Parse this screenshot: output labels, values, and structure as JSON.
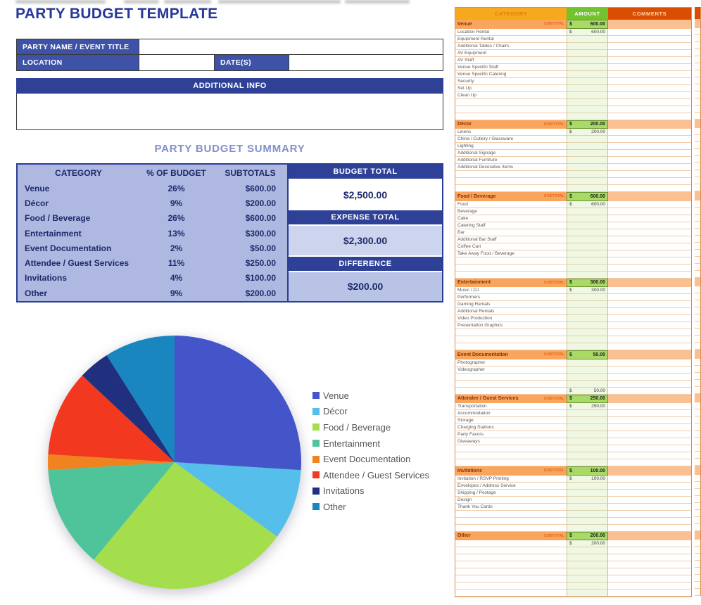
{
  "title": "PARTY BUDGET TEMPLATE",
  "form": {
    "party_name_label": "PARTY NAME / EVENT TITLE",
    "party_name_value": "",
    "location_label": "LOCATION",
    "location_value": "",
    "dates_label": "DATE(S)",
    "dates_value": "",
    "additional_info_label": "ADDITIONAL INFO",
    "additional_info_value": ""
  },
  "summary": {
    "heading": "PARTY BUDGET SUMMARY",
    "columns": [
      "CATEGORY",
      "% OF BUDGET",
      "SUBTOTALS"
    ],
    "rows": [
      {
        "category": "Venue",
        "percent": "26%",
        "subtotal": "$600.00"
      },
      {
        "category": "Décor",
        "percent": "9%",
        "subtotal": "$200.00"
      },
      {
        "category": "Food / Beverage",
        "percent": "26%",
        "subtotal": "$600.00"
      },
      {
        "category": "Entertainment",
        "percent": "13%",
        "subtotal": "$300.00"
      },
      {
        "category": "Event Documentation",
        "percent": "2%",
        "subtotal": "$50.00"
      },
      {
        "category": "Attendee / Guest Services",
        "percent": "11%",
        "subtotal": "$250.00"
      },
      {
        "category": "Invitations",
        "percent": "4%",
        "subtotal": "$100.00"
      },
      {
        "category": "Other",
        "percent": "9%",
        "subtotal": "$200.00"
      }
    ],
    "totals": [
      {
        "label": "BUDGET TOTAL",
        "value": "$2,500.00",
        "bg": "#FFFFFF"
      },
      {
        "label": "EXPENSE TOTAL",
        "value": "$2,300.00",
        "bg": "#CDD5EE"
      },
      {
        "label": "DIFFERENCE",
        "value": "$200.00",
        "bg": "#B9C3E6"
      }
    ]
  },
  "chart_data": {
    "type": "pie",
    "title": "",
    "categories": [
      "Venue",
      "Décor",
      "Food / Beverage",
      "Entertainment",
      "Event Documentation",
      "Attendee / Guest Services",
      "Invitations",
      "Other"
    ],
    "values": [
      26,
      9,
      26,
      13,
      2,
      11,
      4,
      9
    ],
    "colors": [
      "#4355C9",
      "#55BEEA",
      "#A5DE4D",
      "#4FC49B",
      "#F0831F",
      "#F2391F",
      "#20307E",
      "#1A86C0"
    ],
    "legend_position": "right",
    "start_angle_deg": -90,
    "direction": "clockwise"
  },
  "sheet": {
    "columns": [
      {
        "label": "CATEGORY",
        "bg": "#F6A91D",
        "color": "#E07E0B"
      },
      {
        "label": "AMOUNT",
        "bg": "#72C32E",
        "color": "#FFFFFF"
      },
      {
        "label": "COMMENTS",
        "bg": "#D94E00",
        "color": "#FFD7B0"
      }
    ],
    "subtotal_label": "SUBTOTAL",
    "currency_symbol": "$",
    "sections": [
      {
        "name": "Venue",
        "subtotal": "600.00",
        "items": [
          {
            "label": "Location Rental",
            "amount": "600.00"
          },
          {
            "label": "Equipment Rental"
          },
          {
            "label": "Additional Tables / Chairs"
          },
          {
            "label": "AV Equipment"
          },
          {
            "label": "AV Staff"
          },
          {
            "label": "Venue Specific Staff"
          },
          {
            "label": "Venue Specific Catering"
          },
          {
            "label": "Security"
          },
          {
            "label": "Set Up"
          },
          {
            "label": "Clean Up"
          },
          {
            "label": ""
          },
          {
            "label": ""
          },
          {
            "label": ""
          }
        ]
      },
      {
        "name": "Décor",
        "subtotal": "200.00",
        "items": [
          {
            "label": "Linens",
            "amount": "200.00"
          },
          {
            "label": "China / Cutlery / Glassware"
          },
          {
            "label": "Lighting"
          },
          {
            "label": "Additional Signage"
          },
          {
            "label": "Additional Furniture"
          },
          {
            "label": "Additional Decorative Items"
          },
          {
            "label": ""
          },
          {
            "label": ""
          },
          {
            "label": ""
          }
        ]
      },
      {
        "name": "Food / Beverage",
        "subtotal": "600.00",
        "items": [
          {
            "label": "Food",
            "amount": "600.00"
          },
          {
            "label": "Beverage"
          },
          {
            "label": "Cake"
          },
          {
            "label": "Catering Staff"
          },
          {
            "label": "Bar"
          },
          {
            "label": "Additional Bar Staff"
          },
          {
            "label": "Coffee Cart"
          },
          {
            "label": "Take Away Food / Beverage"
          },
          {
            "label": ""
          },
          {
            "label": ""
          },
          {
            "label": ""
          }
        ]
      },
      {
        "name": "Entertainment",
        "subtotal": "300.00",
        "items": [
          {
            "label": "Music / DJ",
            "amount": "300.00"
          },
          {
            "label": "Performers"
          },
          {
            "label": "Gaming Rentals"
          },
          {
            "label": "Additional Rentals"
          },
          {
            "label": "Video Production"
          },
          {
            "label": "Presentation Graphics"
          },
          {
            "label": ""
          },
          {
            "label": ""
          },
          {
            "label": ""
          }
        ]
      },
      {
        "name": "Event Documentation",
        "subtotal": "50.00",
        "items": [
          {
            "label": "Photographer"
          },
          {
            "label": "Videographer"
          },
          {
            "label": ""
          },
          {
            "label": ""
          },
          {
            "label": "",
            "amount": "50.00"
          }
        ]
      },
      {
        "name": "Attendee / Guest Services",
        "subtotal": "250.00",
        "items": [
          {
            "label": "Transportation",
            "amount": "250.00"
          },
          {
            "label": "Accommodation"
          },
          {
            "label": "Storage"
          },
          {
            "label": "Charging Stations"
          },
          {
            "label": "Party Favors"
          },
          {
            "label": "Giveaways"
          },
          {
            "label": ""
          },
          {
            "label": ""
          },
          {
            "label": ""
          }
        ]
      },
      {
        "name": "Invitations",
        "subtotal": "100.00",
        "items": [
          {
            "label": "Invitation / RSVP Printing",
            "amount": "100.00"
          },
          {
            "label": "Envelopes / Address Service"
          },
          {
            "label": "Shipping / Postage"
          },
          {
            "label": "Design"
          },
          {
            "label": "Thank You Cards"
          },
          {
            "label": ""
          },
          {
            "label": ""
          },
          {
            "label": ""
          }
        ]
      },
      {
        "name": "Other",
        "subtotal": "200.00",
        "items": [
          {
            "label": "",
            "amount": "200.00"
          },
          {
            "label": ""
          },
          {
            "label": ""
          },
          {
            "label": ""
          },
          {
            "label": ""
          },
          {
            "label": ""
          },
          {
            "label": ""
          },
          {
            "label": ""
          }
        ]
      }
    ]
  }
}
